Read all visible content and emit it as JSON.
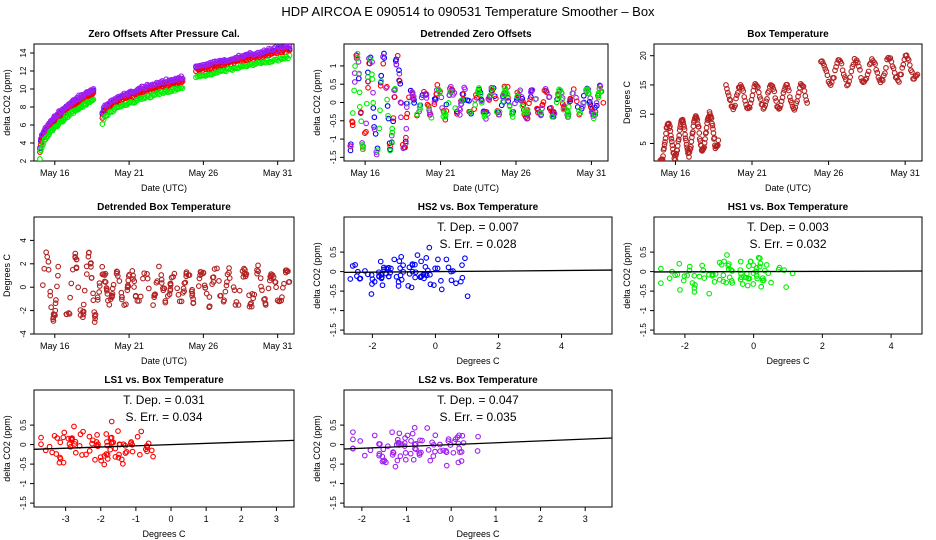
{
  "main_title": "HDP    AIRCOA E    090514 to 090531    Temperature Smoother – Box",
  "colors": {
    "blue": "#0000ff",
    "red": "#ff0000",
    "green": "#00ee00",
    "purple": "#a020f0",
    "darkred": "#b22222"
  },
  "chart_data": [
    {
      "id": "p1",
      "type": "scatter",
      "title": "Zero Offsets After Pressure Cal.",
      "xlabel": "Date (UTC)",
      "ylabel": "delta CO2 (ppm)",
      "xlim": [
        14.6,
        32.1
      ],
      "ylim": [
        2,
        15
      ],
      "xticks": [
        16,
        21,
        26,
        31
      ],
      "xticklabels": [
        "May 16",
        "May 21",
        "May 26",
        "May 31"
      ],
      "yticks": [
        2,
        4,
        6,
        8,
        10,
        12,
        14
      ],
      "yticklabels": [
        "2",
        "4",
        "6",
        "8",
        "10",
        "12",
        "14"
      ],
      "series": [
        {
          "name": "HS2",
          "color": "#0000ff",
          "offset": 0.3
        },
        {
          "name": "LS1",
          "color": "#ff0000",
          "offset": 0.0
        },
        {
          "name": "LS2",
          "color": "#a020f0",
          "offset": 0.5
        },
        {
          "name": "HS1",
          "color": "#00ee00",
          "offset": -0.7
        }
      ],
      "segments": [
        {
          "x0": 15.0,
          "x1": 18.6,
          "y0": 3.0,
          "y1": 9.5,
          "curve": "sqrt"
        },
        {
          "x0": 19.2,
          "x1": 24.6,
          "y0": 6.8,
          "y1": 10.8,
          "curve": "sqrt"
        },
        {
          "x0": 25.5,
          "x1": 31.8,
          "y0": 12.0,
          "y1": 14.3,
          "curve": "linear"
        }
      ]
    },
    {
      "id": "p2",
      "type": "scatter",
      "title": "Detrended Zero Offsets",
      "xlabel": "Date (UTC)",
      "ylabel": "delta CO2 (ppm)",
      "xlim": [
        14.6,
        32.1
      ],
      "ylim": [
        -1.6,
        1.6
      ],
      "xticks": [
        16,
        21,
        26,
        31
      ],
      "xticklabels": [
        "May 16",
        "May 21",
        "May 26",
        "May 31"
      ],
      "yticks": [
        -1.5,
        -1,
        -0.5,
        0,
        0.5,
        1
      ],
      "yticklabels": [
        "-1.5",
        "-1",
        "-0.5",
        "0",
        "0.5",
        "1"
      ],
      "series": [
        {
          "name": "HS2",
          "color": "#0000ff"
        },
        {
          "name": "LS1",
          "color": "#ff0000"
        },
        {
          "name": "LS2",
          "color": "#a020f0"
        },
        {
          "name": "HS1",
          "color": "#00ee00"
        }
      ]
    },
    {
      "id": "p3",
      "type": "scatter",
      "title": "Box Temperature",
      "xlabel": "Date (UTC)",
      "ylabel": "Degrees C",
      "xlim": [
        14.6,
        32.1
      ],
      "ylim": [
        2,
        22
      ],
      "xticks": [
        16,
        21,
        26,
        31
      ],
      "xticklabels": [
        "May 16",
        "May 21",
        "May 26",
        "May 31"
      ],
      "yticks": [
        5,
        10,
        15,
        20
      ],
      "yticklabels": [
        "5",
        "10",
        "15",
        "20"
      ],
      "series": [
        {
          "name": "Box",
          "color": "#b22222"
        }
      ],
      "segments": [
        {
          "x0": 15.0,
          "x1": 18.8,
          "y0": 5.0,
          "y1": 7.5,
          "amp": 3.0,
          "period": 0.9
        },
        {
          "x0": 19.3,
          "x1": 24.6,
          "y0": 13.0,
          "y1": 13.0,
          "amp": 2.0,
          "period": 1.0
        },
        {
          "x0": 25.5,
          "x1": 31.8,
          "y0": 17.0,
          "y1": 18.0,
          "amp": 2.0,
          "period": 1.1
        }
      ]
    },
    {
      "id": "p4",
      "type": "scatter",
      "title": "Detrended Box Temperature",
      "xlabel": "Date (UTC)",
      "ylabel": "Degrees C",
      "xlim": [
        14.6,
        32.1
      ],
      "ylim": [
        -4,
        6
      ],
      "xticks": [
        16,
        21,
        26,
        31
      ],
      "xticklabels": [
        "May 16",
        "May 21",
        "May 26",
        "May 31"
      ],
      "yticks": [
        -4,
        -2,
        0,
        2,
        4
      ],
      "yticklabels": [
        "-4",
        "-2",
        "0",
        "2",
        "4"
      ],
      "series": [
        {
          "name": "Box",
          "color": "#b22222"
        }
      ]
    },
    {
      "id": "p5",
      "type": "scatter",
      "title": "HS2 vs. Box Temperature",
      "xlabel": "Degrees C",
      "ylabel": "delta CO2 (ppm)",
      "xlim": [
        -2.9,
        5.6
      ],
      "ylim": [
        -1.6,
        1.4
      ],
      "xticks": [
        -2,
        0,
        2,
        4
      ],
      "xticklabels": [
        "-2",
        "0",
        "2",
        "4"
      ],
      "yticks": [
        -1.5,
        -1,
        -0.5,
        0,
        0.5
      ],
      "yticklabels": [
        "-1.5",
        "-1",
        "-0.5",
        "0",
        "0.5"
      ],
      "color": "#0000ff",
      "slope": 0.007,
      "stat1": "T. Dep. =  0.007",
      "stat2": "S. Err. =  0.028"
    },
    {
      "id": "p6",
      "type": "scatter",
      "title": "HS1 vs. Box Temperature",
      "xlabel": "Degrees C",
      "ylabel": "delta CO2 (ppm)",
      "xlim": [
        -2.9,
        4.9
      ],
      "ylim": [
        -1.6,
        1.4
      ],
      "xticks": [
        -2,
        0,
        2,
        4
      ],
      "xticklabels": [
        "-2",
        "0",
        "2",
        "4"
      ],
      "yticks": [
        -1.5,
        -1,
        -0.5,
        0,
        0.5
      ],
      "yticklabels": [
        "-1.5",
        "-1",
        "-0.5",
        "0",
        "0.5"
      ],
      "color": "#00ee00",
      "slope": 0.003,
      "stat1": "T. Dep. =  0.003",
      "stat2": "S. Err. =  0.032"
    },
    {
      "id": "p7",
      "type": "scatter",
      "title": "LS1 vs. Box Temperature",
      "xlabel": "Degrees C",
      "ylabel": "delta CO2 (ppm)",
      "xlim": [
        -3.9,
        3.5
      ],
      "ylim": [
        -1.6,
        1.4
      ],
      "xticks": [
        -3,
        -2,
        -1,
        0,
        1,
        2,
        3
      ],
      "xticklabels": [
        "-3",
        "-2",
        "-1",
        "0",
        "1",
        "2",
        "3"
      ],
      "yticks": [
        -1.5,
        -1,
        -0.5,
        0,
        0.5
      ],
      "yticklabels": [
        "-1.5",
        "-1",
        "-0.5",
        "0",
        "0.5"
      ],
      "color": "#ff0000",
      "slope": 0.031,
      "stat1": "T. Dep. =  0.031",
      "stat2": "S. Err. =  0.034"
    },
    {
      "id": "p8",
      "type": "scatter",
      "title": "LS2 vs. Box Temperature",
      "xlabel": "Degrees C",
      "ylabel": "delta CO2 (ppm)",
      "xlim": [
        -2.4,
        3.6
      ],
      "ylim": [
        -1.6,
        1.4
      ],
      "xticks": [
        -2,
        -1,
        0,
        1,
        2,
        3
      ],
      "xticklabels": [
        "-2",
        "-1",
        "0",
        "1",
        "2",
        "3"
      ],
      "yticks": [
        -1.5,
        -1,
        -0.5,
        0,
        0.5
      ],
      "yticklabels": [
        "-1.5",
        "-1",
        "-0.5",
        "0",
        "0.5"
      ],
      "color": "#a020f0",
      "slope": 0.047,
      "stat1": "T. Dep. =  0.047",
      "stat2": "S. Err. =  0.035"
    }
  ]
}
